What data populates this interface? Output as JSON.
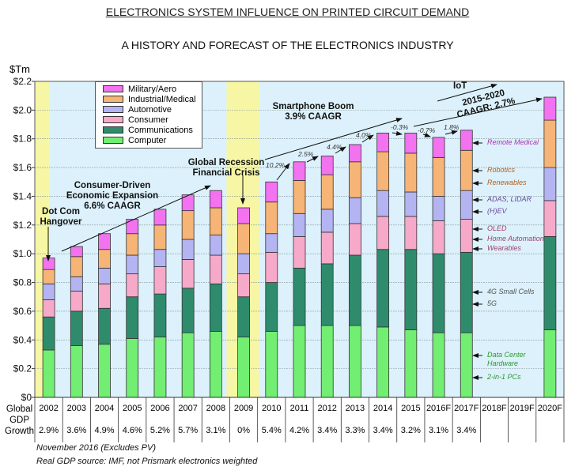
{
  "title": "ELECTRONICS SYSTEM INFLUENCE ON PRINTED CIRCUIT DEMAND",
  "subtitle": "A HISTORY AND FORECAST OF THE ELECTRONICS INDUSTRY",
  "chart_data": {
    "type": "bar",
    "stacked": true,
    "ylabel": "$Tm",
    "ylim": [
      0,
      2.2
    ],
    "yticks": [
      "$0",
      "$0.2",
      "$0.4",
      "$0.6",
      "$0.8",
      "$1.0",
      "$1.2",
      "$1.4",
      "$1.6",
      "$1.8",
      "$2.0",
      "$2.2"
    ],
    "grid": true,
    "legend_position": "top-left",
    "categories": [
      "2002",
      "2003",
      "2004",
      "2005",
      "2006",
      "2007",
      "2008",
      "2009",
      "2010",
      "2011",
      "2012",
      "2013",
      "2014",
      "2015",
      "2016F",
      "2017F",
      "2018F",
      "2019F",
      "2020F"
    ],
    "highlighted_categories": [
      "2002",
      "2009"
    ],
    "series": [
      {
        "name": "Computer",
        "color": "#72ee72",
        "values": [
          0.33,
          0.36,
          0.37,
          0.41,
          0.42,
          0.45,
          0.46,
          0.42,
          0.46,
          0.5,
          0.5,
          0.5,
          0.49,
          0.47,
          0.45,
          0.45,
          null,
          null,
          0.47
        ]
      },
      {
        "name": "Communications",
        "color": "#2e8c6c",
        "values": [
          0.23,
          0.24,
          0.25,
          0.29,
          0.3,
          0.31,
          0.33,
          0.28,
          0.34,
          0.4,
          0.43,
          0.49,
          0.54,
          0.56,
          0.55,
          0.56,
          null,
          null,
          0.65
        ]
      },
      {
        "name": "Consumer",
        "color": "#f6a9c9",
        "values": [
          0.12,
          0.14,
          0.17,
          0.16,
          0.19,
          0.2,
          0.2,
          0.16,
          0.21,
          0.22,
          0.22,
          0.22,
          0.23,
          0.23,
          0.23,
          0.23,
          null,
          null,
          0.25
        ]
      },
      {
        "name": "Automotive",
        "color": "#b4b4f2",
        "values": [
          0.11,
          0.1,
          0.11,
          0.13,
          0.12,
          0.14,
          0.14,
          0.14,
          0.13,
          0.16,
          0.16,
          0.18,
          0.18,
          0.17,
          0.17,
          0.2,
          null,
          null,
          0.23
        ]
      },
      {
        "name": "Industrial/Medical",
        "color": "#f6b476",
        "values": [
          0.1,
          0.14,
          0.13,
          0.15,
          0.17,
          0.2,
          0.19,
          0.21,
          0.22,
          0.23,
          0.24,
          0.25,
          0.27,
          0.27,
          0.27,
          0.28,
          null,
          null,
          0.33
        ]
      },
      {
        "name": "Military/Aero",
        "color": "#f272f0",
        "values": [
          0.08,
          0.07,
          0.11,
          0.1,
          0.11,
          0.11,
          0.12,
          0.11,
          0.14,
          0.13,
          0.13,
          0.12,
          0.13,
          0.14,
          0.14,
          0.14,
          null,
          null,
          0.16
        ]
      }
    ],
    "legend_order": [
      "Military/Aero",
      "Industrial/Medical",
      "Automotive",
      "Consumer",
      "Communications",
      "Computer"
    ],
    "growth_labels": [
      "10.2%",
      "2.5%",
      "4.4%",
      "4.0%",
      "-0.3%",
      "-0.7%",
      "1.8%"
    ],
    "annotations": {
      "dotcom": [
        "Dot Com",
        "Hangover"
      ],
      "consumer": [
        "Consumer-Driven",
        "Economic Expansion",
        "6.6% CAAGR"
      ],
      "recession": [
        "Global Recession",
        "Financial Crisis"
      ],
      "smartphone": [
        "Smartphone Boom",
        "3.9% CAAGR"
      ],
      "iot": "IoT",
      "forecast": [
        "2015-2020",
        "CAAGR: 2.7%"
      ]
    },
    "side_labels": [
      {
        "text": "Remote Medical",
        "color": "#b030b0"
      },
      {
        "text": "Robotics",
        "color": "#b06020"
      },
      {
        "text": "Renewables",
        "color": "#b06020"
      },
      {
        "text": "ADAS, LIDAR",
        "color": "#6a4a9a"
      },
      {
        "text": "(H)EV",
        "color": "#6a4a9a"
      },
      {
        "text": "OLED",
        "color": "#a04070"
      },
      {
        "text": "Home Automation",
        "color": "#a04070"
      },
      {
        "text": "Wearables",
        "color": "#a04070"
      },
      {
        "text": "4G Small Cells",
        "color": "#555555"
      },
      {
        "text": "5G",
        "color": "#555555"
      },
      {
        "text": "Data Center",
        "color": "#2a9a2a"
      },
      {
        "text": "Hardware",
        "color": "#2a9a2a"
      },
      {
        "text": "2-in-1 PCs",
        "color": "#2a9a2a"
      }
    ],
    "table": {
      "row_label": [
        "Global",
        "GDP",
        "Growth"
      ],
      "gdp_growth": [
        "2.9%",
        "3.6%",
        "4.9%",
        "4.6%",
        "5.2%",
        "5.7%",
        "3.1%",
        "0%",
        "5.4%",
        "4.2%",
        "3.4%",
        "3.3%",
        "3.4%",
        "3.2%",
        "3.1%",
        "3.4%",
        "",
        "",
        ""
      ]
    }
  },
  "notes": [
    "November 2016  (Excludes PV)",
    "Real GDP source: IMF, not Prismark electronics weighted"
  ]
}
